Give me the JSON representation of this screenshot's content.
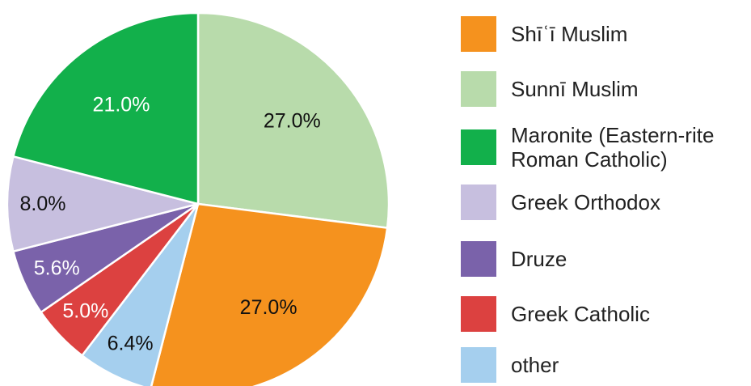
{
  "chart_data": {
    "type": "pie",
    "title": "",
    "start_angle_deg": 90,
    "direction": "clockwise",
    "legend_position": "right",
    "slices": [
      {
        "name": "Sunnī Muslim",
        "value": 27.0,
        "label": "27.0%",
        "color": "#b8dbab",
        "label_color": "#111111"
      },
      {
        "name": "Shīʿī Muslim",
        "value": 27.0,
        "label": "27.0%",
        "color": "#f5921e",
        "label_color": "#111111"
      },
      {
        "name": "other",
        "value": 6.4,
        "label": "6.4%",
        "color": "#a5cfee",
        "label_color": "#111111"
      },
      {
        "name": "Greek Catholic",
        "value": 5.0,
        "label": "5.0%",
        "color": "#dc4140",
        "label_color": "#ffffff"
      },
      {
        "name": "Druze",
        "value": 5.6,
        "label": "5.6%",
        "color": "#7a62aa",
        "label_color": "#ffffff"
      },
      {
        "name": "Greek Orthodox",
        "value": 8.0,
        "label": "8.0%",
        "color": "#c7bfdf",
        "label_color": "#111111"
      },
      {
        "name": "Maronite (Eastern-rite Roman Catholic)",
        "value": 21.0,
        "label": "21.0%",
        "color": "#12b04b",
        "label_color": "#ffffff"
      }
    ]
  },
  "legend": {
    "items": [
      {
        "label": "Shīʿī Muslim",
        "color": "#f5921e"
      },
      {
        "label": "Sunnī Muslim",
        "color": "#b8dbab"
      },
      {
        "label": "Maronite (Eastern-rite\nRoman Catholic)",
        "color": "#12b04b"
      },
      {
        "label": "Greek Orthodox",
        "color": "#c7bfdf"
      },
      {
        "label": "Druze",
        "color": "#7a62aa"
      },
      {
        "label": "Greek Catholic",
        "color": "#dc4140"
      },
      {
        "label": "other",
        "color": "#a5cfee"
      }
    ]
  }
}
